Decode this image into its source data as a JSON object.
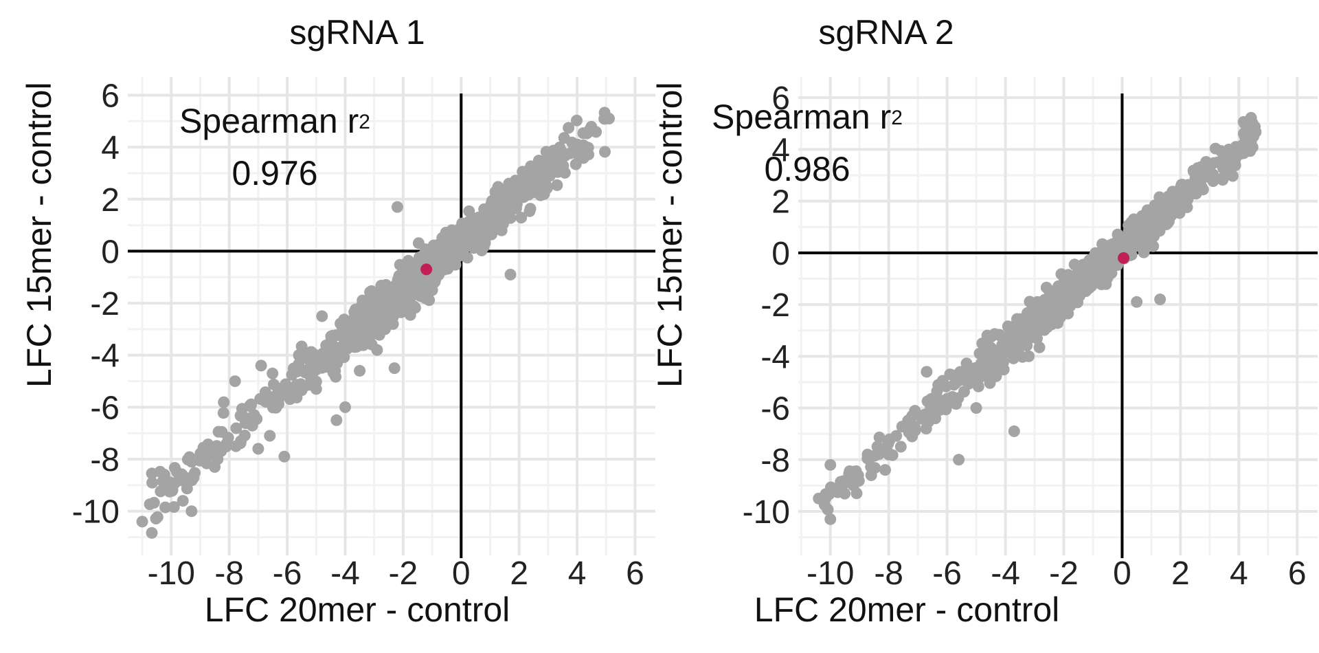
{
  "chart_data": [
    {
      "type": "scatter",
      "title": "sgRNA 1",
      "xlabel": "LFC 20mer - control",
      "ylabel": "LFC 15mer - control",
      "xlim": [
        -11.5,
        6.7
      ],
      "ylim": [
        -11.7,
        6.7
      ],
      "xticks": [
        -10,
        -8,
        -6,
        -4,
        -2,
        0,
        2,
        4,
        6
      ],
      "yticks": [
        -10,
        -8,
        -6,
        -4,
        -2,
        0,
        2,
        4,
        6
      ],
      "grid": true,
      "annotation": {
        "label": "Spearman r",
        "sup": "2",
        "value": "0.976"
      },
      "point_color": "#a4a4a4",
      "highlight_color": "#c21f55",
      "trend": {
        "slope": 0.93,
        "intercept": 0.35,
        "x_range": [
          -10.8,
          5.1
        ],
        "spread": 0.5,
        "count": 900
      },
      "points": [
        {
          "x": -11.0,
          "y": -10.4
        },
        {
          "x": -9.6,
          "y": -9.6
        },
        {
          "x": -9.3,
          "y": -10.0
        },
        {
          "x": -9.3,
          "y": -8.7
        },
        {
          "x": -9.3,
          "y": -8.1
        },
        {
          "x": -8.5,
          "y": -8.3
        },
        {
          "x": -8.4,
          "y": -8.0
        },
        {
          "x": -7.8,
          "y": -5.0
        },
        {
          "x": -7.6,
          "y": -7.3
        },
        {
          "x": -7.4,
          "y": -6.6
        },
        {
          "x": -7.0,
          "y": -7.6
        },
        {
          "x": -6.9,
          "y": -4.4
        },
        {
          "x": -6.6,
          "y": -7.1
        },
        {
          "x": -6.1,
          "y": -7.9
        },
        {
          "x": -6.3,
          "y": -5.7
        },
        {
          "x": -5.6,
          "y": -4.0
        },
        {
          "x": -5.0,
          "y": -5.3
        },
        {
          "x": -4.8,
          "y": -2.5
        },
        {
          "x": -4.3,
          "y": -6.5
        },
        {
          "x": -4.0,
          "y": -6.0
        },
        {
          "x": -3.5,
          "y": -4.6
        },
        {
          "x": -2.9,
          "y": -3.8
        },
        {
          "x": -2.3,
          "y": -4.5
        },
        {
          "x": -2.2,
          "y": 1.7
        },
        {
          "x": -1.0,
          "y": -1.5
        },
        {
          "x": 1.7,
          "y": -0.9
        },
        {
          "x": 3.1,
          "y": 3.7
        },
        {
          "x": 3.9,
          "y": 4.0
        },
        {
          "x": 4.4,
          "y": 4.6
        },
        {
          "x": 5.1,
          "y": 5.1
        }
      ],
      "highlight": [
        {
          "x": -1.2,
          "y": -0.7
        }
      ]
    },
    {
      "type": "scatter",
      "title": "sgRNA 2",
      "xlabel": "LFC 20mer - control",
      "ylabel": "LFC 15mer - control",
      "xlim": [
        -11.1,
        6.7
      ],
      "ylim": [
        -11.7,
        6.8
      ],
      "xticks": [
        -10,
        -8,
        -6,
        -4,
        -2,
        0,
        2,
        4,
        6
      ],
      "yticks": [
        -10,
        -8,
        -6,
        -4,
        -2,
        0,
        2,
        4,
        6
      ],
      "grid": true,
      "annotation": {
        "label": "Spearman r",
        "sup": "2",
        "value": "0.986"
      },
      "point_color": "#a4a4a4",
      "highlight_color": "#c21f55",
      "trend": {
        "slope": 0.96,
        "intercept": 0.2,
        "x_range": [
          -10.3,
          4.6
        ],
        "spread": 0.4,
        "count": 900
      },
      "points": [
        {
          "x": -10.4,
          "y": -9.5
        },
        {
          "x": -10.0,
          "y": -10.3
        },
        {
          "x": -10.0,
          "y": -8.2
        },
        {
          "x": -9.5,
          "y": -8.9
        },
        {
          "x": -9.1,
          "y": -9.3
        },
        {
          "x": -9.1,
          "y": -8.7
        },
        {
          "x": -8.6,
          "y": -8.6
        },
        {
          "x": -8.0,
          "y": -7.8
        },
        {
          "x": -7.2,
          "y": -7.1
        },
        {
          "x": -6.7,
          "y": -4.6
        },
        {
          "x": -6.4,
          "y": -6.4
        },
        {
          "x": -5.9,
          "y": -5.8
        },
        {
          "x": -5.6,
          "y": -8.0
        },
        {
          "x": -5.9,
          "y": -4.7
        },
        {
          "x": -5.0,
          "y": -6.0
        },
        {
          "x": -3.7,
          "y": -6.9
        },
        {
          "x": -3.2,
          "y": -4.0
        },
        {
          "x": -2.8,
          "y": -2.3
        },
        {
          "x": -1.3,
          "y": -1.2
        },
        {
          "x": 0.5,
          "y": -1.9
        },
        {
          "x": 1.3,
          "y": -1.8
        },
        {
          "x": 0.4,
          "y": 1.3
        },
        {
          "x": 3.0,
          "y": 3.2
        },
        {
          "x": 3.9,
          "y": 4.1
        },
        {
          "x": 4.5,
          "y": 4.5
        },
        {
          "x": 4.4,
          "y": 4.2
        }
      ],
      "highlight": [
        {
          "x": 0.05,
          "y": -0.2
        }
      ]
    }
  ]
}
